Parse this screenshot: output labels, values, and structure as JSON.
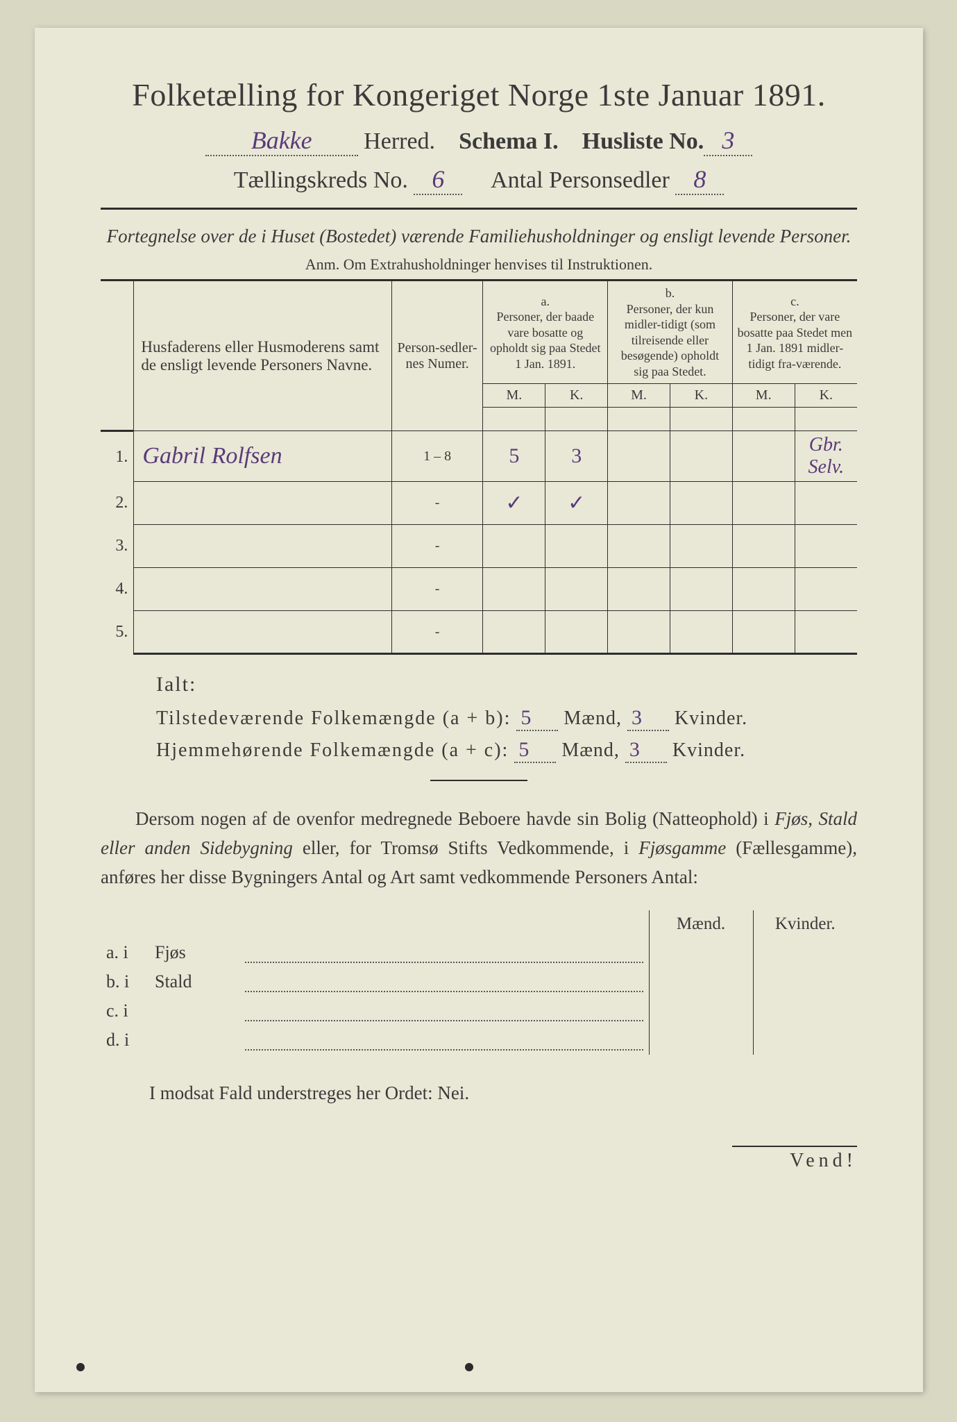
{
  "title": "Folketælling for Kongeriget Norge 1ste Januar 1891.",
  "line2": {
    "herred_value": "Bakke",
    "herred_label": "Herred.",
    "schema_label": "Schema I.",
    "husliste_label": "Husliste No.",
    "husliste_value": "3"
  },
  "line3": {
    "kreds_label": "Tællingskreds No.",
    "kreds_value": "6",
    "antal_label": "Antal Personsedler",
    "antal_value": "8"
  },
  "subtitle": "Fortegnelse over de i Huset (Bostedet) værende Familiehusholdninger og ensligt levende Personer.",
  "anm": "Anm.  Om Extrahusholdninger henvises til Instruktionen.",
  "table": {
    "col_name": "Husfaderens eller Husmoderens samt de ensligt levende Personers Navne.",
    "col_num": "Person-sedler-nes Numer.",
    "group_a_letter": "a.",
    "group_a": "Personer, der baade vare bosatte og opholdt sig paa Stedet 1 Jan. 1891.",
    "group_b_letter": "b.",
    "group_b": "Personer, der kun midler-tidigt (som tilreisende eller besøgende) opholdt sig paa Stedet.",
    "group_c_letter": "c.",
    "group_c": "Personer, der vare bosatte paa Stedet men 1 Jan. 1891 midler-tidigt fra-værende.",
    "M": "M.",
    "K": "K.",
    "rows": [
      {
        "n": "1.",
        "name": "Gabril Rolfsen",
        "num": "1 – 8",
        "aM": "5",
        "aK": "3",
        "bM": "",
        "bK": "",
        "cM": "",
        "cK": "",
        "note": "Gbr. Selv."
      },
      {
        "n": "2.",
        "name": "",
        "num": "-",
        "aM": "✓",
        "aK": "✓",
        "bM": "",
        "bK": "",
        "cM": "",
        "cK": ""
      },
      {
        "n": "3.",
        "name": "",
        "num": "-",
        "aM": "",
        "aK": "",
        "bM": "",
        "bK": "",
        "cM": "",
        "cK": ""
      },
      {
        "n": "4.",
        "name": "",
        "num": "-",
        "aM": "",
        "aK": "",
        "bM": "",
        "bK": "",
        "cM": "",
        "cK": ""
      },
      {
        "n": "5.",
        "name": "",
        "num": "-",
        "aM": "",
        "aK": "",
        "bM": "",
        "bK": "",
        "cM": "",
        "cK": ""
      }
    ]
  },
  "ialt": {
    "label": "Ialt:",
    "line1_a": "Tilstedeværende Folkemængde (a + b):",
    "line2_a": "Hjemmehørende Folkemængde (a + c):",
    "maend": "Mænd,",
    "kvinder": "Kvinder.",
    "v1m": "5",
    "v1k": "3",
    "v2m": "5",
    "v2k": "3"
  },
  "para": "Dersom nogen af de ovenfor medregnede Beboere havde sin Bolig (Natteophold) i Fjøs, Stald eller anden Sidebygning eller, for Tromsø Stifts Vedkommende, i Fjøsgamme (Fællesgamme), anføres her disse Bygningers Antal og Art samt vedkommende Personers Antal:",
  "bottom": {
    "maend": "Mænd.",
    "kvinder": "Kvinder.",
    "rows": [
      {
        "lead": "a.  i",
        "type": "Fjøs"
      },
      {
        "lead": "b.  i",
        "type": "Stald"
      },
      {
        "lead": "c.  i",
        "type": ""
      },
      {
        "lead": "d.  i",
        "type": ""
      }
    ]
  },
  "nei": "I modsat Fald understreges her Ordet: Nei.",
  "vend": "Vend!"
}
